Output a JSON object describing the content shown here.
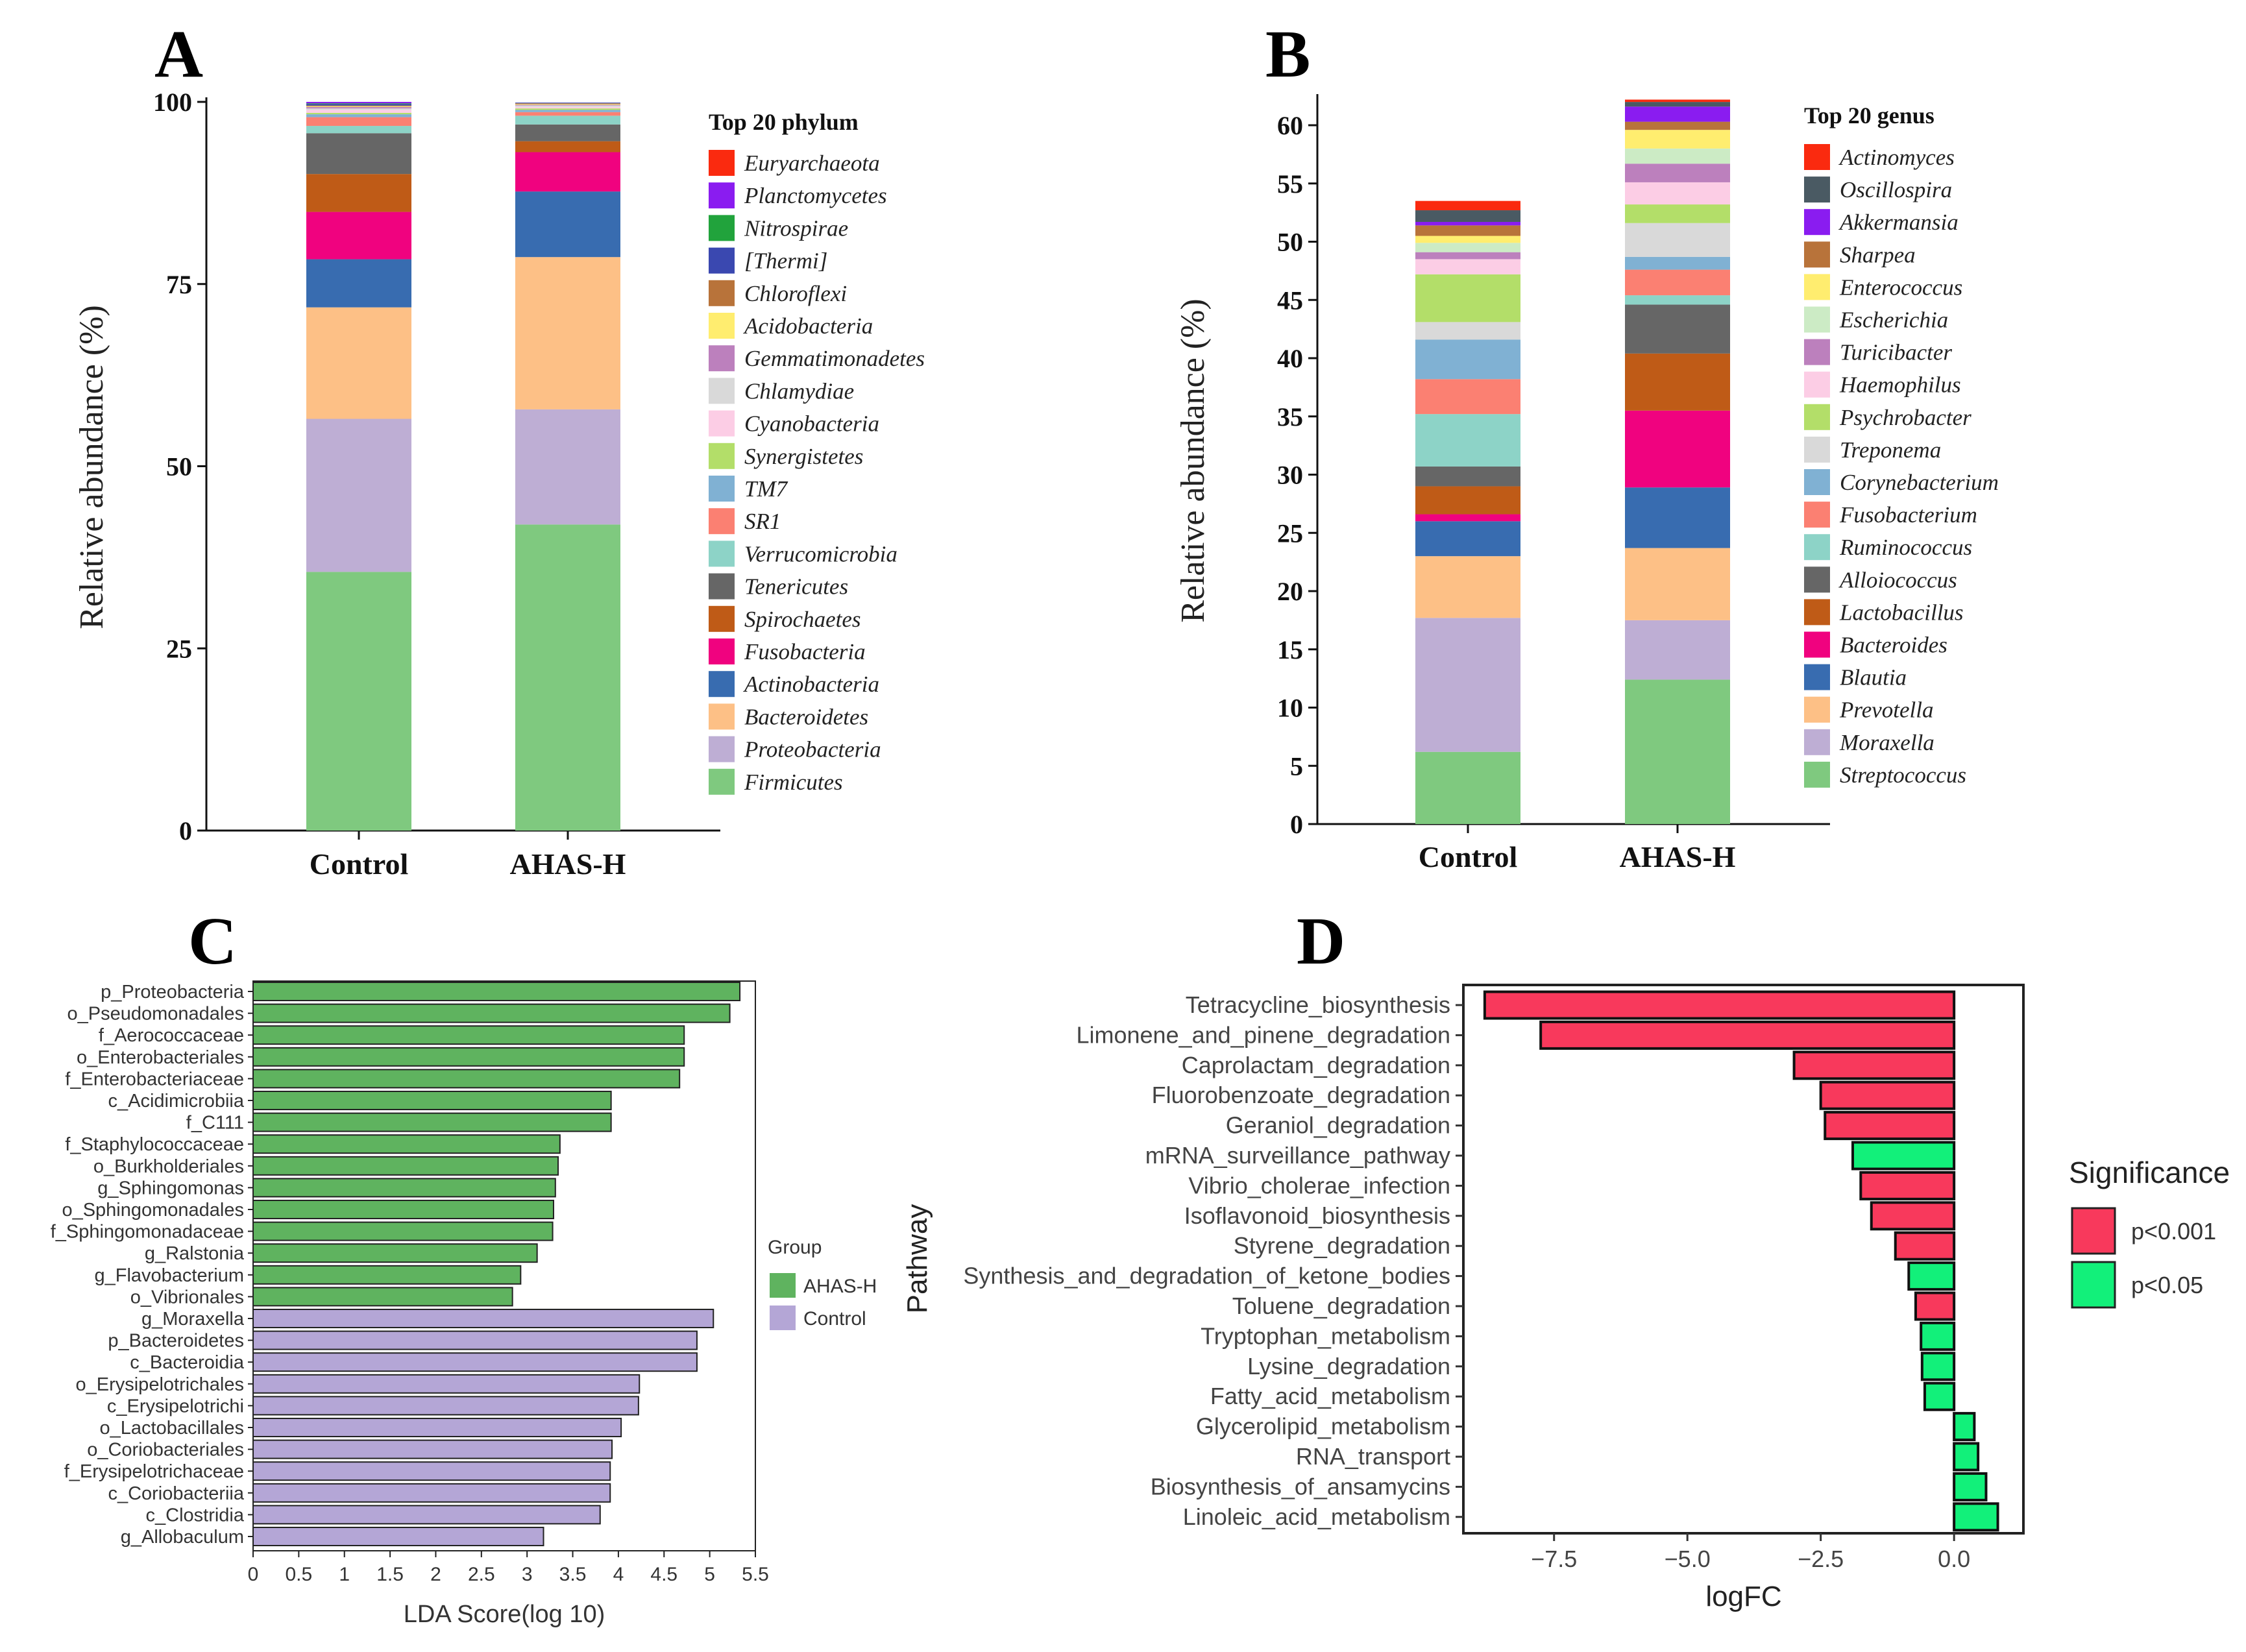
{
  "panels": {
    "A": {
      "label": "A"
    },
    "B": {
      "label": "B"
    },
    "C": {
      "label": "C"
    },
    "D": {
      "label": "D"
    }
  },
  "chart_data": [
    {
      "panel": "A",
      "type": "bar",
      "stacked": true,
      "title": "",
      "xlabel": "",
      "ylabel": "Relative abundance (%)",
      "ylim": [
        0,
        100
      ],
      "yticks": [
        0,
        25,
        50,
        75,
        100
      ],
      "categories": [
        "Control",
        "AHAS-H"
      ],
      "legend_title": "Top 20 phylum",
      "series": [
        {
          "name": "Firmicutes",
          "color": "#7fc97f",
          "values": [
            35.5,
            42.0
          ]
        },
        {
          "name": "Proteobacteria",
          "color": "#beaed4",
          "values": [
            21.0,
            15.8
          ]
        },
        {
          "name": "Bacteroidetes",
          "color": "#fdc086",
          "values": [
            15.3,
            20.9
          ]
        },
        {
          "name": "Actinobacteria",
          "color": "#386cb0",
          "values": [
            6.6,
            9.0
          ]
        },
        {
          "name": "Fusobacteria",
          "color": "#f0027f",
          "values": [
            6.5,
            5.4
          ]
        },
        {
          "name": "Spirochaetes",
          "color": "#bf5b17",
          "values": [
            5.2,
            1.5
          ]
        },
        {
          "name": "Tenericutes",
          "color": "#666666",
          "values": [
            5.6,
            2.3
          ]
        },
        {
          "name": "Verrucomicrobia",
          "color": "#8dd3c7",
          "values": [
            1.0,
            1.2
          ]
        },
        {
          "name": "SR1",
          "color": "#fb8072",
          "values": [
            1.2,
            0.5
          ]
        },
        {
          "name": "TM7",
          "color": "#80b1d3",
          "values": [
            0.4,
            0.3
          ]
        },
        {
          "name": "Synergistetes",
          "color": "#b3de69",
          "values": [
            0.2,
            0.2
          ]
        },
        {
          "name": "Cyanobacteria",
          "color": "#fccde5",
          "values": [
            0.4,
            0.2
          ]
        },
        {
          "name": "Chlamydiae",
          "color": "#d9d9d9",
          "values": [
            0.2,
            0.2
          ]
        },
        {
          "name": "Gemmatimonadetes",
          "color": "#bc80bd",
          "values": [
            0.2,
            0.1
          ]
        },
        {
          "name": "Acidobacteria",
          "color": "#ffed6f",
          "values": [
            0.1,
            0.1
          ]
        },
        {
          "name": "Chloroflexi",
          "color": "#b8733a",
          "values": [
            0.1,
            0.1
          ]
        },
        {
          "name": "[Thermi]",
          "color": "#3a48b0",
          "values": [
            0.2,
            0.1
          ]
        },
        {
          "name": "Nitrospirae",
          "color": "#21a33c",
          "values": [
            0.1,
            0.0
          ]
        },
        {
          "name": "Planctomycetes",
          "color": "#8a1cf0",
          "values": [
            0.2,
            0.0
          ]
        },
        {
          "name": "Euryarchaeota",
          "color": "#fa2a0f",
          "values": [
            0.0,
            0.0
          ]
        }
      ]
    },
    {
      "panel": "B",
      "type": "bar",
      "stacked": true,
      "title": "",
      "xlabel": "",
      "ylabel": "Relative abundance (%)",
      "ylim": [
        0,
        62
      ],
      "yticks": [
        0,
        5,
        10,
        15,
        20,
        25,
        30,
        35,
        40,
        45,
        50,
        55,
        60
      ],
      "categories": [
        "Control",
        "AHAS-H"
      ],
      "legend_title": "Top 20 genus",
      "series": [
        {
          "name": "Streptococcus",
          "color": "#7fc97f",
          "values": [
            6.2,
            12.4
          ]
        },
        {
          "name": "Moraxella",
          "color": "#beaed4",
          "values": [
            11.5,
            5.1
          ]
        },
        {
          "name": "Prevotella",
          "color": "#fdc086",
          "values": [
            5.3,
            6.2
          ]
        },
        {
          "name": "Blautia",
          "color": "#386cb0",
          "values": [
            3.0,
            5.2
          ]
        },
        {
          "name": "Bacteroides",
          "color": "#f0027f",
          "values": [
            0.6,
            6.6
          ]
        },
        {
          "name": "Lactobacillus",
          "color": "#bf5b17",
          "values": [
            2.4,
            4.9
          ]
        },
        {
          "name": "Alloiococcus",
          "color": "#666666",
          "values": [
            1.7,
            4.2
          ]
        },
        {
          "name": "Ruminococcus",
          "color": "#8dd3c7",
          "values": [
            4.5,
            0.8
          ]
        },
        {
          "name": "Fusobacterium",
          "color": "#fb8072",
          "values": [
            3.0,
            2.2
          ]
        },
        {
          "name": "Corynebacterium",
          "color": "#80b1d3",
          "values": [
            3.4,
            1.1
          ]
        },
        {
          "name": "Treponema",
          "color": "#d9d9d9",
          "values": [
            1.5,
            2.9
          ]
        },
        {
          "name": "Psychrobacter",
          "color": "#b3de69",
          "values": [
            4.1,
            1.6
          ]
        },
        {
          "name": "Haemophilus",
          "color": "#fccde5",
          "values": [
            1.3,
            1.9
          ]
        },
        {
          "name": "Turicibacter",
          "color": "#bc80bd",
          "values": [
            0.6,
            1.6
          ]
        },
        {
          "name": "Escherichia",
          "color": "#ccebc5",
          "values": [
            0.8,
            1.3
          ]
        },
        {
          "name": "Enterococcus",
          "color": "#ffed6f",
          "values": [
            0.6,
            1.6
          ]
        },
        {
          "name": "Sharpea",
          "color": "#b8733a",
          "values": [
            0.9,
            0.7
          ]
        },
        {
          "name": "Akkermansia",
          "color": "#8a1cf0",
          "values": [
            0.3,
            1.3
          ]
        },
        {
          "name": "Oscillospira",
          "color": "#4a5a63",
          "values": [
            1.0,
            0.4
          ]
        },
        {
          "name": "Actinomyces",
          "color": "#fa2a0f",
          "values": [
            0.8,
            0.2
          ]
        }
      ]
    },
    {
      "panel": "C",
      "type": "bar",
      "orientation": "horizontal",
      "title": "",
      "xlabel": "LDA Score(log 10)",
      "ylabel": "",
      "xlim": [
        0,
        5.5
      ],
      "xticks": [
        "0",
        "0.5",
        "1",
        "1.5",
        "2",
        "2.5",
        "3",
        "3.5",
        "4",
        "4.5",
        "5",
        "5.5"
      ],
      "legend_title": "Group",
      "groups": [
        {
          "name": "AHAS-H",
          "color": "#5fb35f"
        },
        {
          "name": "Control",
          "color": "#b4a6d6"
        }
      ],
      "categories": [
        "p_Proteobacteria",
        "o_Pseudomonadales",
        "f_Aerococcaceae",
        "o_Enterobacteriales",
        "f_Enterobacteriaceae",
        "c_Acidimicrobiia",
        "f_C111",
        "f_Staphylococcaceae",
        "o_Burkholderiales",
        "g_Sphingomonas",
        "o_Sphingomonadales",
        "f_Sphingomonadaceae",
        "g_Ralstonia",
        "g_Flavobacterium",
        "o_Vibrionales",
        "g_Moraxella",
        "p_Bacteroidetes",
        "c_Bacteroidia",
        "o_Erysipelotrichales",
        "c_Erysipelotrichi",
        "o_Lactobacillales",
        "o_Coriobacteriales",
        "f_Erysipelotrichaceae",
        "c_Coriobacteriia",
        "c_Clostridia",
        "g_Allobaculum"
      ],
      "values": [
        5.33,
        5.22,
        4.72,
        4.72,
        4.67,
        3.92,
        3.92,
        3.36,
        3.34,
        3.31,
        3.29,
        3.28,
        3.11,
        2.93,
        2.84,
        5.04,
        4.86,
        4.86,
        4.23,
        4.22,
        4.03,
        3.93,
        3.91,
        3.91,
        3.8,
        3.18
      ],
      "group_of": [
        "AHAS-H",
        "AHAS-H",
        "AHAS-H",
        "AHAS-H",
        "AHAS-H",
        "AHAS-H",
        "AHAS-H",
        "AHAS-H",
        "AHAS-H",
        "AHAS-H",
        "AHAS-H",
        "AHAS-H",
        "AHAS-H",
        "AHAS-H",
        "AHAS-H",
        "Control",
        "Control",
        "Control",
        "Control",
        "Control",
        "Control",
        "Control",
        "Control",
        "Control",
        "Control",
        "Control"
      ]
    },
    {
      "panel": "D",
      "type": "bar",
      "orientation": "horizontal",
      "title": "",
      "xlabel": "logFC",
      "ylabel": "Pathway",
      "xlim": [
        -9.2,
        1.3
      ],
      "xticks": [
        "−7.5",
        "−5.0",
        "−2.5",
        "0.0"
      ],
      "xtick_values": [
        -7.5,
        -5.0,
        -2.5,
        0.0
      ],
      "legend_title": "Significance",
      "groups": [
        {
          "name": "p<0.001",
          "color": "#f8395c"
        },
        {
          "name": "p<0.05",
          "color": "#12f07a"
        }
      ],
      "categories": [
        "Tetracycline_biosynthesis",
        "Limonene_and_pinene_degradation",
        "Caprolactam_degradation",
        "Fluorobenzoate_degradation",
        "Geraniol_degradation",
        "mRNA_surveillance_pathway",
        "Vibrio_cholerae_infection",
        "Isoflavonoid_biosynthesis",
        "Styrene_degradation",
        "Synthesis_and_degradation_of_ketone_bodies",
        "Toluene_degradation",
        "Tryptophan_metabolism",
        "Lysine_degradation",
        "Fatty_acid_metabolism",
        "Glycerolipid_metabolism",
        "RNA_transport",
        "Biosynthesis_of_ansamycins",
        "Linoleic_acid_metabolism"
      ],
      "values": [
        -8.8,
        -7.75,
        -3.0,
        -2.5,
        -2.42,
        -1.9,
        -1.75,
        -1.55,
        -1.1,
        -0.85,
        -0.72,
        -0.62,
        -0.6,
        -0.55,
        0.38,
        0.45,
        0.6,
        0.82
      ],
      "group_of": [
        "p<0.001",
        "p<0.001",
        "p<0.001",
        "p<0.001",
        "p<0.001",
        "p<0.05",
        "p<0.001",
        "p<0.001",
        "p<0.001",
        "p<0.05",
        "p<0.001",
        "p<0.05",
        "p<0.05",
        "p<0.05",
        "p<0.05",
        "p<0.05",
        "p<0.05",
        "p<0.05"
      ]
    }
  ]
}
